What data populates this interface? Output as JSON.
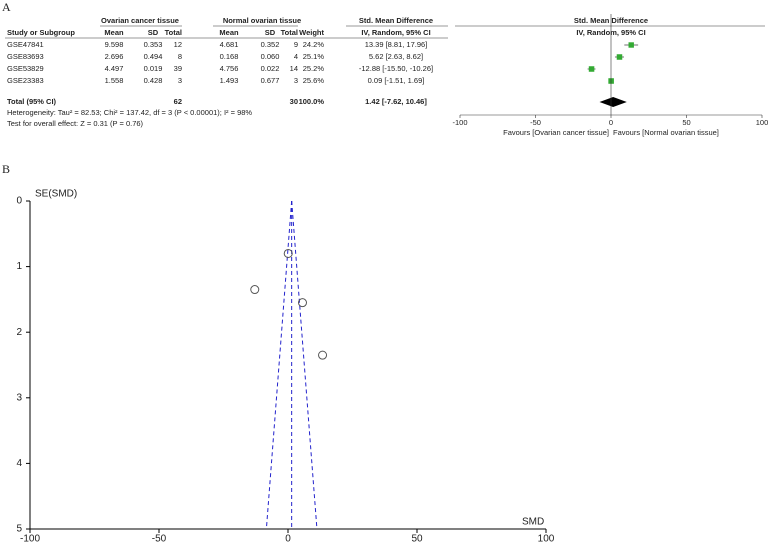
{
  "panel_labels": [
    "A",
    "B"
  ],
  "chart_data": [
    {
      "type": "forest",
      "group_headers": [
        "Ovarian cancer tissue",
        "Normal ovarian tissue",
        "Std. Mean Difference",
        "Std. Mean Difference"
      ],
      "columns": [
        "Study or Subgroup",
        "Mean",
        "SD",
        "Total",
        "Mean",
        "SD",
        "Total",
        "Weight",
        "IV, Random, 95% CI",
        "IV, Random, 95% CI"
      ],
      "rows": [
        [
          "GSE47841",
          "9.598",
          "0.353",
          "12",
          "4.681",
          "0.352",
          "9",
          "24.2%",
          "13.39 [8.81, 17.96]"
        ],
        [
          "GSE83693",
          "2.696",
          "0.494",
          "8",
          "0.168",
          "0.060",
          "4",
          "25.1%",
          "5.62 [2.63, 8.62]"
        ],
        [
          "GSE53829",
          "4.497",
          "0.019",
          "39",
          "4.756",
          "0.022",
          "14",
          "25.2%",
          "-12.88 [-15.50, -10.26]"
        ],
        [
          "GSE23383",
          "1.558",
          "0.428",
          "3",
          "1.493",
          "0.677",
          "3",
          "25.6%",
          "0.09 [-1.51, 1.69]"
        ]
      ],
      "values": [
        13.39,
        5.62,
        -12.88,
        0.09
      ],
      "ci_low": [
        8.81,
        2.63,
        -15.5,
        -1.51
      ],
      "ci_high": [
        17.96,
        8.62,
        -10.26,
        1.69
      ],
      "weights": [
        24.2,
        25.1,
        25.2,
        25.6
      ],
      "total": {
        "label": "Total (95% CI)",
        "total1": "62",
        "total2": "30",
        "weight": "100.0%",
        "ci_text": "1.42 [-7.62, 10.46]"
      },
      "total_value": 1.42,
      "total_ci": [
        -7.62,
        10.46
      ],
      "heterogeneity": "Heterogeneity: Tau² = 82.53; Chi² = 137.42, df = 3 (P < 0.00001); I² = 98%",
      "overall_test": "Test for overall effect: Z = 0.31 (P = 0.76)",
      "xlim": [
        -100,
        100
      ],
      "xticks": [
        -100,
        -50,
        0,
        50,
        100
      ],
      "favours": [
        "Favours [Ovarian cancer tissue]",
        "Favours [Normal ovarian tissue]"
      ],
      "color": "#33aa33"
    },
    {
      "type": "scatter",
      "xlabel": "SMD",
      "ylabel": "SE(SMD)",
      "x": [
        13.39,
        5.62,
        -12.88,
        0.09
      ],
      "values": [
        2.35,
        1.55,
        1.35,
        0.8
      ],
      "xlim": [
        -100,
        100
      ],
      "ylim": [
        0,
        5
      ],
      "xticks": [
        -100,
        -50,
        0,
        50,
        100
      ],
      "yticks": [
        0,
        1,
        2,
        3,
        4,
        5
      ],
      "y_reversed": true,
      "color": "#555555",
      "line_color": "#2222cc"
    }
  ]
}
